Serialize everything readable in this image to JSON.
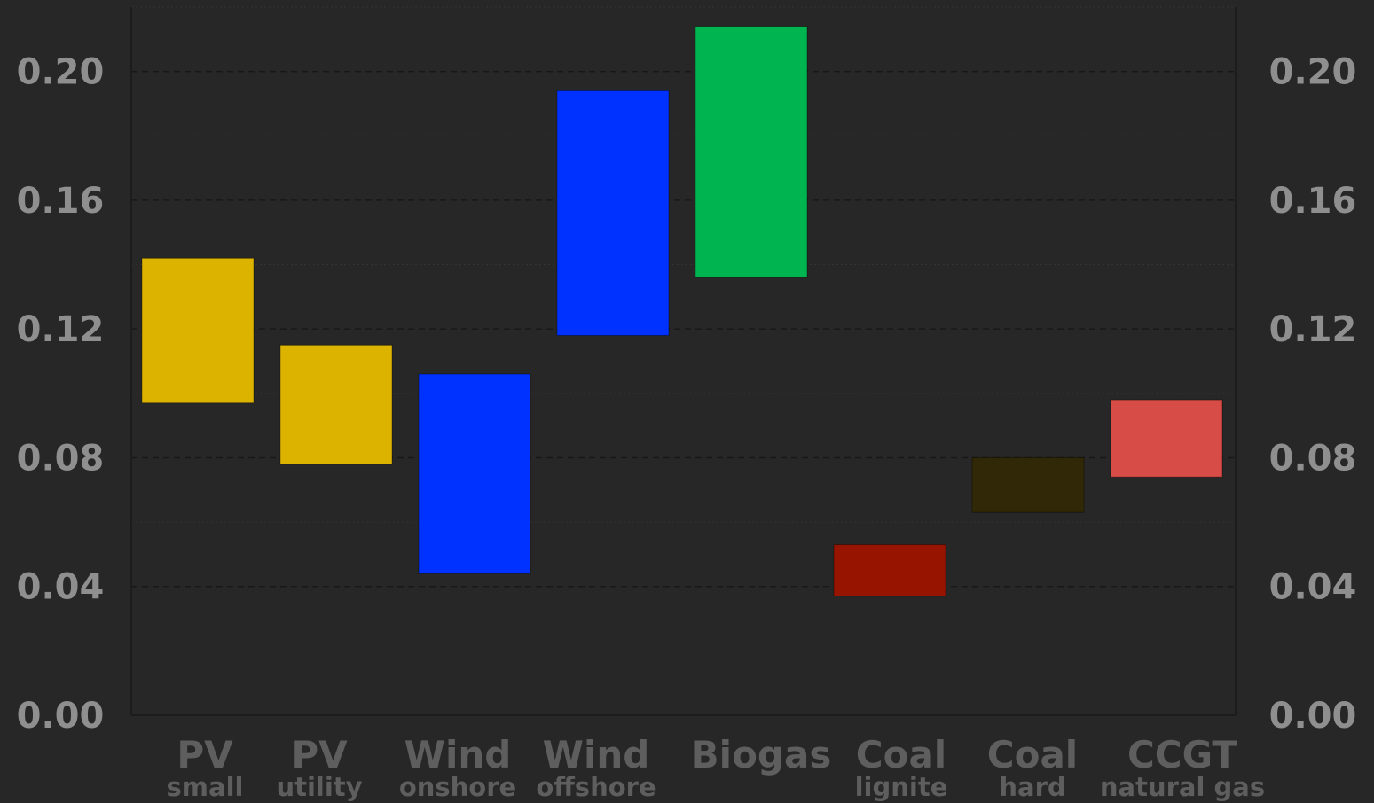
{
  "chart_data": {
    "type": "bar",
    "subtype": "floating-range",
    "title": "",
    "xlabel": "",
    "ylabel": "",
    "ylim": [
      0,
      0.22
    ],
    "yticks": [
      "0.00",
      "0.04",
      "0.08",
      "0.12",
      "0.16",
      "0.20"
    ],
    "ytick_values": [
      0,
      0.04,
      0.08,
      0.12,
      0.16,
      0.2
    ],
    "y_axis_both_sides": true,
    "grid": true,
    "categories": [
      {
        "main": "PV",
        "sub": "small"
      },
      {
        "main": "PV",
        "sub": "utility"
      },
      {
        "main": "Wind",
        "sub": "onshore"
      },
      {
        "main": "Wind",
        "sub": "offshore"
      },
      {
        "main": "Biogas",
        "sub": ""
      },
      {
        "main": "Coal",
        "sub": "lignite"
      },
      {
        "main": "Coal",
        "sub": "hard"
      },
      {
        "main": "CCGT",
        "sub": "natural gas"
      }
    ],
    "ranges": [
      {
        "low": 0.097,
        "high": 0.142,
        "color": "#dcb400"
      },
      {
        "low": 0.078,
        "high": 0.115,
        "color": "#dcb400"
      },
      {
        "low": 0.044,
        "high": 0.106,
        "color": "#0032ff"
      },
      {
        "low": 0.118,
        "high": 0.194,
        "color": "#0032ff"
      },
      {
        "low": 0.136,
        "high": 0.214,
        "color": "#00b450"
      },
      {
        "low": 0.037,
        "high": 0.053,
        "color": "#961400"
      },
      {
        "low": 0.063,
        "high": 0.08,
        "color": "#302806"
      },
      {
        "low": 0.074,
        "high": 0.098,
        "color": "#d74c46"
      }
    ]
  }
}
